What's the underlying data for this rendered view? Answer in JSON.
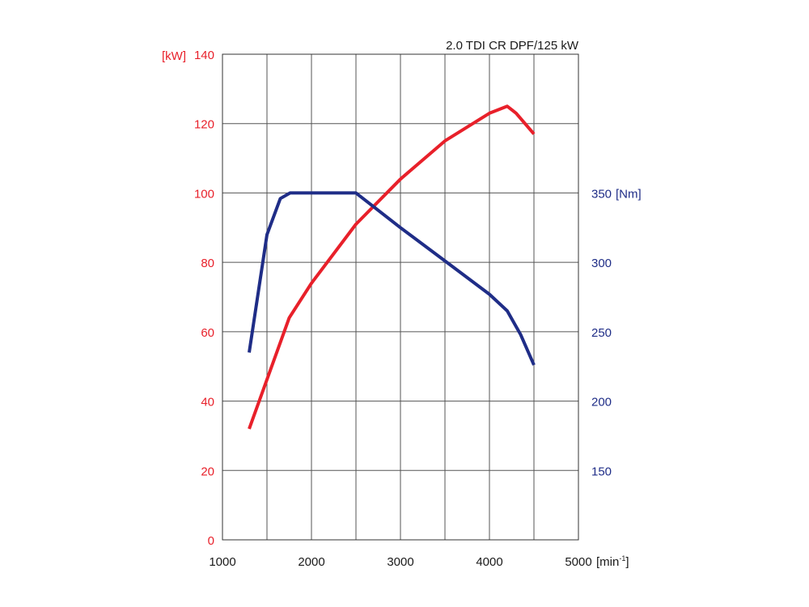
{
  "chart_data": {
    "type": "line",
    "title": "2.0 TDI CR DPF/125 kW",
    "x_axis": {
      "range": [
        1000,
        5000
      ],
      "ticks": [
        "1000",
        "2000",
        "3000",
        "4000",
        "5000"
      ],
      "tick_values": [
        1000,
        2000,
        3000,
        4000,
        5000
      ],
      "unit_label": "[min",
      "unit_sup": "-1",
      "unit_close": "]",
      "grid_step": 500
    },
    "y_left": {
      "unit_label": "[kW]",
      "range": [
        0,
        140
      ],
      "ticks": [
        "0",
        "20",
        "40",
        "60",
        "80",
        "100",
        "120",
        "140"
      ],
      "tick_values": [
        0,
        20,
        40,
        60,
        80,
        100,
        120,
        140
      ],
      "color": "#e8202a"
    },
    "y_right": {
      "unit_label": "[Nm]",
      "range": [
        100,
        450
      ],
      "ticks": [
        "150",
        "200",
        "250",
        "300",
        "350"
      ],
      "tick_values": [
        150,
        200,
        250,
        300,
        350
      ],
      "color": "#1f2d87"
    },
    "grid": true,
    "series": [
      {
        "axis": "left",
        "color": "#e8202a",
        "points": [
          [
            1300,
            32
          ],
          [
            1750,
            64
          ],
          [
            2000,
            74
          ],
          [
            2500,
            91
          ],
          [
            3000,
            104
          ],
          [
            3500,
            115
          ],
          [
            4000,
            123
          ],
          [
            4200,
            125
          ],
          [
            4300,
            123
          ],
          [
            4500,
            117
          ]
        ]
      },
      {
        "axis": "right",
        "color": "#1f2d87",
        "points": [
          [
            1300,
            235
          ],
          [
            1500,
            320
          ],
          [
            1650,
            346
          ],
          [
            1760,
            350
          ],
          [
            2000,
            350
          ],
          [
            2500,
            350
          ],
          [
            3000,
            325
          ],
          [
            3500,
            301
          ],
          [
            4000,
            277
          ],
          [
            4200,
            265
          ],
          [
            4350,
            248
          ],
          [
            4500,
            226
          ]
        ]
      }
    ]
  }
}
